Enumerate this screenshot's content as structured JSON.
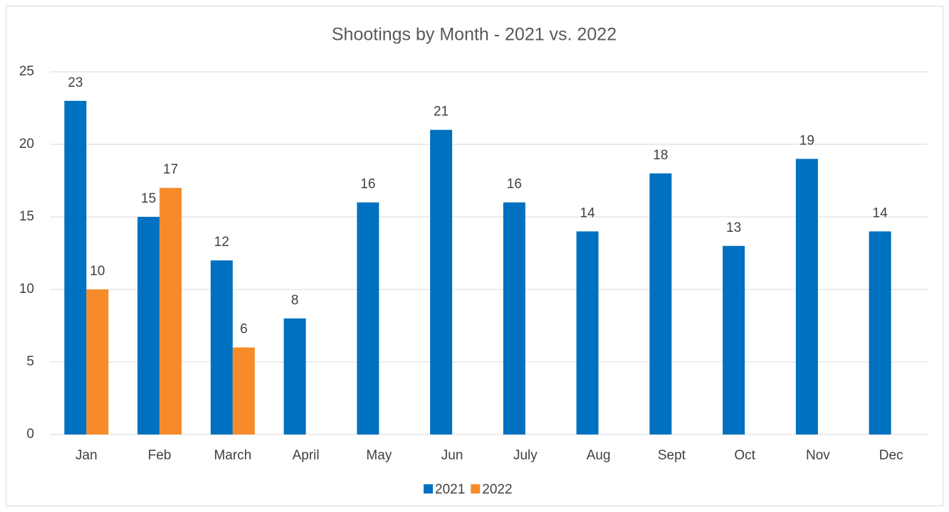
{
  "chart_data": {
    "type": "bar",
    "title": "Shootings by Month - 2021 vs. 2022",
    "categories": [
      "Jan",
      "Feb",
      "March",
      "April",
      "May",
      "Jun",
      "July",
      "Aug",
      "Sept",
      "Oct",
      "Nov",
      "Dec"
    ],
    "series": [
      {
        "name": "2021",
        "color": "#0070c0",
        "values": [
          23,
          15,
          12,
          8,
          16,
          21,
          16,
          14,
          18,
          13,
          19,
          14
        ]
      },
      {
        "name": "2022",
        "color": "#f78b2a",
        "values": [
          10,
          17,
          6,
          null,
          null,
          null,
          null,
          null,
          null,
          null,
          null,
          null
        ]
      }
    ],
    "ylim": [
      0,
      25
    ],
    "yticks": [
      0,
      5,
      10,
      15,
      20,
      25
    ],
    "grid": true,
    "legend": "bottom",
    "data_labels": true
  }
}
